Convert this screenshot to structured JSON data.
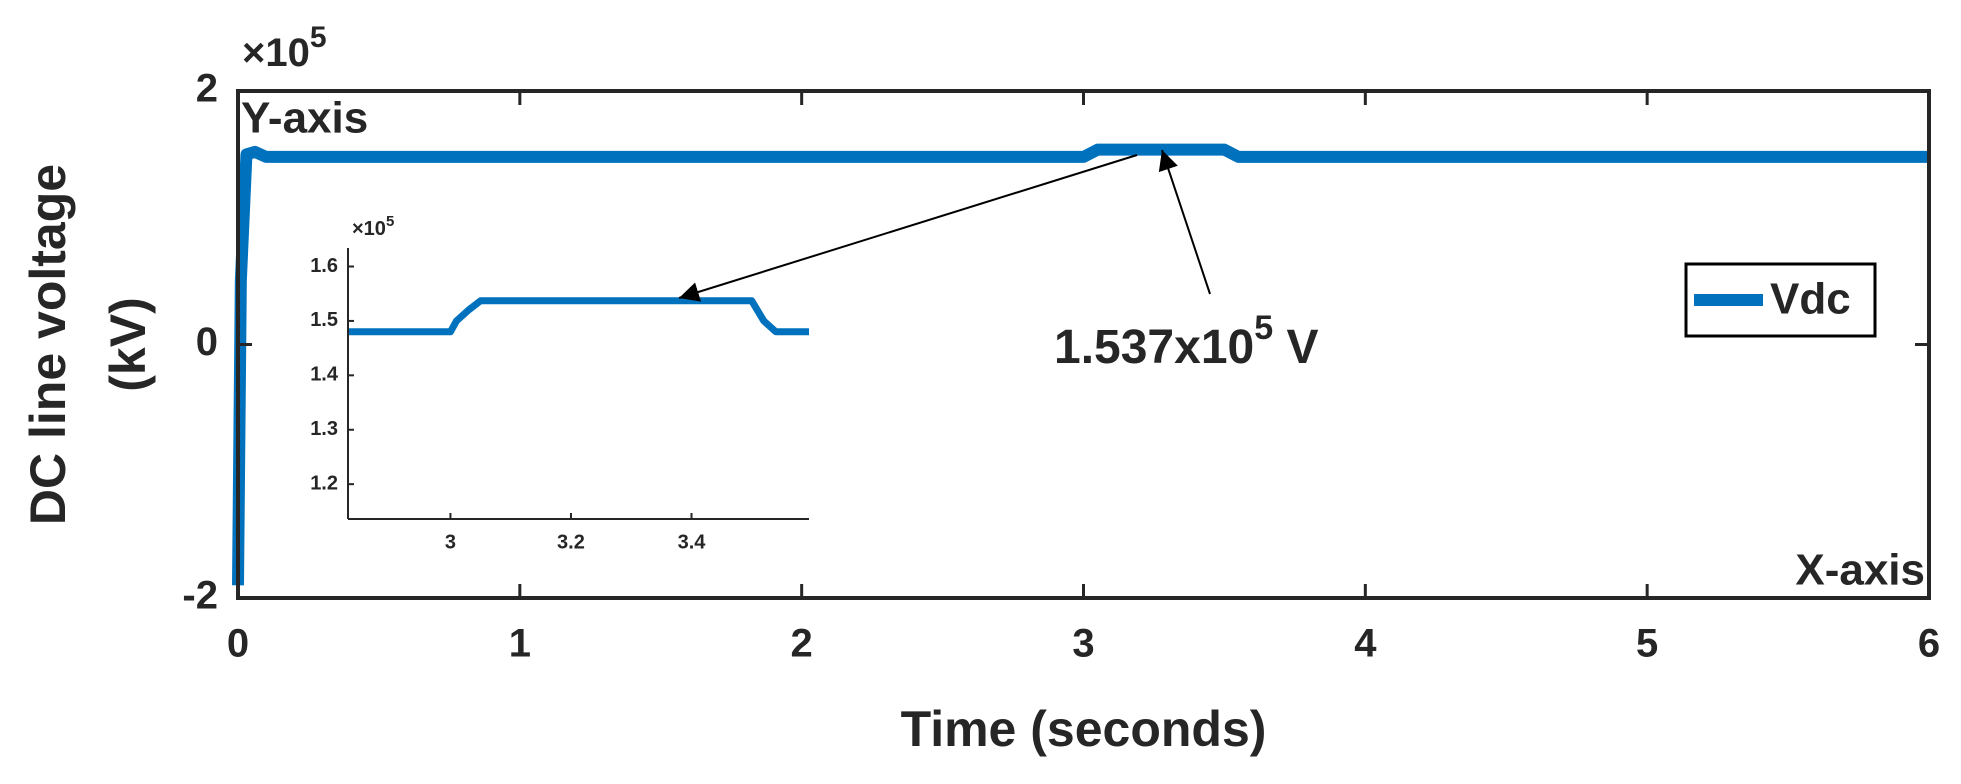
{
  "chart_data": [
    {
      "type": "line",
      "xlabel": "Time (seconds)",
      "ylabel": [
        "DC line voltage",
        "(kV)"
      ],
      "y_multiplier": "×10",
      "y_multiplier_exponent": "5",
      "corner_labels": {
        "y": "Y-axis",
        "x": "X-axis"
      },
      "annotation": {
        "text": "1.537x10",
        "superscript": "5",
        "suffix": " V"
      },
      "legend": "right",
      "xlim": [
        0,
        6
      ],
      "xticks": [
        0,
        1,
        2,
        3,
        4,
        5,
        6
      ],
      "ylim": [
        -2,
        2
      ],
      "yticks": [
        -2,
        0,
        2
      ],
      "series": [
        {
          "name": "Vdc",
          "color": "#0072bd",
          "x": [
            0,
            0.01,
            0.03,
            0.06,
            0.1,
            0.2,
            3.0,
            3.05,
            3.5,
            3.55,
            6
          ],
          "values": [
            -1.9,
            0.5,
            1.5,
            1.52,
            1.48,
            1.48,
            1.48,
            1.537,
            1.537,
            1.48,
            1.48
          ]
        }
      ]
    },
    {
      "type": "line",
      "y_multiplier": "×10",
      "y_multiplier_exponent": "5",
      "xlim": [
        2.83,
        3.595
      ],
      "xticks": [
        3,
        3.2,
        3.4
      ],
      "ylim": [
        1.136,
        1.634
      ],
      "yticks": [
        1.2,
        1.3,
        1.4,
        1.5,
        1.6
      ],
      "series": [
        {
          "color": "#0072bd",
          "x": [
            2.83,
            3.0,
            3.01,
            3.03,
            3.05,
            3.5,
            3.52,
            3.54,
            3.595
          ],
          "values": [
            1.48,
            1.48,
            1.5,
            1.52,
            1.537,
            1.537,
            1.5,
            1.48,
            1.48
          ]
        }
      ]
    }
  ]
}
